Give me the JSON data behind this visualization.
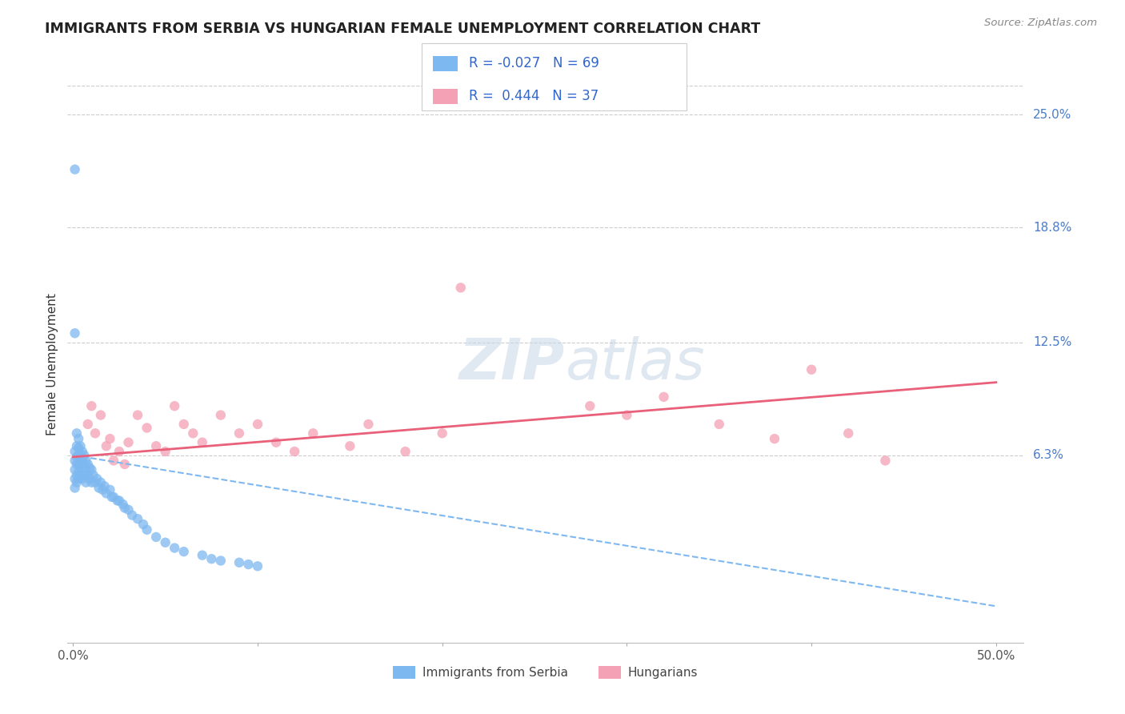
{
  "title": "IMMIGRANTS FROM SERBIA VS HUNGARIAN FEMALE UNEMPLOYMENT CORRELATION CHART",
  "source": "Source: ZipAtlas.com",
  "ylabel": "Female Unemployment",
  "xlim": [
    -0.003,
    0.515
  ],
  "ylim": [
    -0.04,
    0.266
  ],
  "plot_xlim": [
    0.0,
    0.5
  ],
  "xticks": [
    0.0,
    0.1,
    0.2,
    0.3,
    0.4,
    0.5
  ],
  "xticklabels": [
    "0.0%",
    "",
    "",
    "",
    "",
    "50.0%"
  ],
  "ytick_positions": [
    0.063,
    0.125,
    0.188,
    0.25
  ],
  "ytick_labels": [
    "6.3%",
    "12.5%",
    "18.8%",
    "25.0%"
  ],
  "series1_name": "Immigrants from Serbia",
  "series1_color": "#7eb8f0",
  "series1_R": -0.027,
  "series1_N": 69,
  "series2_name": "Hungarians",
  "series2_color": "#f4a0b5",
  "series2_R": 0.444,
  "series2_N": 37,
  "trend1_color": "#7eb8f0",
  "trend2_color": "#e8607a",
  "background_color": "#ffffff",
  "grid_color": "#cccccc",
  "watermark_color": "#dce8f5",
  "title_color": "#222222",
  "ytick_color": "#4a7cc9",
  "xtick_color": "#555555",
  "ylabel_color": "#333333",
  "source_color": "#888888",
  "legend_text_color": "#333333",
  "legend_rn_color": "#3366cc",
  "series1_x": [
    0.001,
    0.001,
    0.001,
    0.001,
    0.001,
    0.001,
    0.002,
    0.002,
    0.002,
    0.002,
    0.002,
    0.002,
    0.003,
    0.003,
    0.003,
    0.003,
    0.003,
    0.003,
    0.004,
    0.004,
    0.004,
    0.004,
    0.005,
    0.005,
    0.005,
    0.005,
    0.006,
    0.006,
    0.006,
    0.007,
    0.007,
    0.007,
    0.008,
    0.008,
    0.009,
    0.009,
    0.01,
    0.01,
    0.011,
    0.012,
    0.013,
    0.014,
    0.015,
    0.016,
    0.017,
    0.018,
    0.02,
    0.021,
    0.022,
    0.024,
    0.025,
    0.027,
    0.028,
    0.03,
    0.032,
    0.035,
    0.038,
    0.04,
    0.045,
    0.05,
    0.055,
    0.06,
    0.07,
    0.075,
    0.08,
    0.09,
    0.095,
    0.1,
    0.001
  ],
  "series1_y": [
    0.22,
    0.065,
    0.06,
    0.055,
    0.05,
    0.045,
    0.075,
    0.068,
    0.062,
    0.058,
    0.052,
    0.048,
    0.072,
    0.067,
    0.063,
    0.058,
    0.054,
    0.05,
    0.068,
    0.063,
    0.058,
    0.052,
    0.065,
    0.06,
    0.056,
    0.05,
    0.063,
    0.058,
    0.052,
    0.06,
    0.055,
    0.048,
    0.058,
    0.052,
    0.056,
    0.05,
    0.055,
    0.048,
    0.052,
    0.048,
    0.05,
    0.045,
    0.048,
    0.044,
    0.046,
    0.042,
    0.044,
    0.04,
    0.04,
    0.038,
    0.038,
    0.036,
    0.034,
    0.033,
    0.03,
    0.028,
    0.025,
    0.022,
    0.018,
    0.015,
    0.012,
    0.01,
    0.008,
    0.006,
    0.005,
    0.004,
    0.003,
    0.002,
    0.13
  ],
  "series2_x": [
    0.008,
    0.01,
    0.012,
    0.015,
    0.018,
    0.02,
    0.022,
    0.025,
    0.028,
    0.03,
    0.035,
    0.04,
    0.045,
    0.05,
    0.055,
    0.06,
    0.065,
    0.07,
    0.08,
    0.09,
    0.1,
    0.11,
    0.12,
    0.13,
    0.15,
    0.16,
    0.18,
    0.2,
    0.21,
    0.28,
    0.3,
    0.32,
    0.35,
    0.38,
    0.4,
    0.42,
    0.44
  ],
  "series2_y": [
    0.08,
    0.09,
    0.075,
    0.085,
    0.068,
    0.072,
    0.06,
    0.065,
    0.058,
    0.07,
    0.085,
    0.078,
    0.068,
    0.065,
    0.09,
    0.08,
    0.075,
    0.07,
    0.085,
    0.075,
    0.08,
    0.07,
    0.065,
    0.075,
    0.068,
    0.08,
    0.065,
    0.075,
    0.155,
    0.09,
    0.085,
    0.095,
    0.08,
    0.072,
    0.11,
    0.075,
    0.06
  ],
  "trend1_x0": 0.0,
  "trend1_y0": 0.063,
  "trend1_x1": 0.5,
  "trend1_y1": -0.02,
  "trend2_x0": 0.0,
  "trend2_y0": 0.062,
  "trend2_x1": 0.5,
  "trend2_y1": 0.103
}
